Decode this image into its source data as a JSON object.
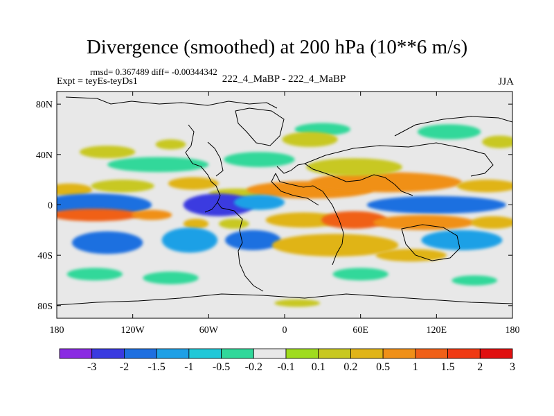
{
  "header": {
    "title": "Divergence (smoothed) at 200 hPa (10**6 m/s)",
    "stats": "rmsd= 0.367489 diff= -0.00344342",
    "expt": "Expt = teyEs-teyDs1",
    "subtitle": "222_4_MaBP - 222_4_MaBP",
    "season": "JJA"
  },
  "chart_data": {
    "type": "heatmap",
    "title": "Divergence (smoothed) at 200 hPa (10**6 m/s)",
    "xlabel": "",
    "ylabel": "",
    "xlim": [
      -180,
      180
    ],
    "ylim": [
      -90,
      90
    ],
    "x_ticks": [
      {
        "value": -180,
        "label": "180"
      },
      {
        "value": -120,
        "label": "120W"
      },
      {
        "value": -60,
        "label": "60W"
      },
      {
        "value": 0,
        "label": "0"
      },
      {
        "value": 60,
        "label": "60E"
      },
      {
        "value": 120,
        "label": "120E"
      },
      {
        "value": 180,
        "label": "180"
      }
    ],
    "y_ticks": [
      {
        "value": 80,
        "label": "80N"
      },
      {
        "value": 40,
        "label": "40N"
      },
      {
        "value": 0,
        "label": "0"
      },
      {
        "value": -40,
        "label": "40S"
      },
      {
        "value": -80,
        "label": "80S"
      }
    ],
    "colorbar": {
      "levels": [
        "-3",
        "-2",
        "-1.5",
        "-1",
        "-0.5",
        "-0.2",
        "-0.1",
        "0.1",
        "0.2",
        "0.5",
        "1",
        "1.5",
        "2",
        "3"
      ],
      "colors": [
        "#8a2be2",
        "#3a3ae0",
        "#1e6fe0",
        "#1ea0e6",
        "#20c8d8",
        "#30d89a",
        "#e8e8e8",
        "#9fdc1e",
        "#c8c820",
        "#e0b418",
        "#f09018",
        "#f06018",
        "#f03a14",
        "#e01010"
      ]
    },
    "blobs": [
      {
        "lon": -170,
        "lat": 12,
        "rx": 18,
        "ry": 5,
        "level": 9
      },
      {
        "lon": -128,
        "lat": 15,
        "rx": 25,
        "ry": 5,
        "level": 8
      },
      {
        "lon": -72,
        "lat": 17,
        "rx": 20,
        "ry": 5,
        "level": 9
      },
      {
        "lon": -38,
        "lat": 9,
        "rx": 22,
        "ry": 4,
        "level": 8
      },
      {
        "lon": 20,
        "lat": 12,
        "rx": 50,
        "ry": 7,
        "level": 10
      },
      {
        "lon": 80,
        "lat": 18,
        "rx": 60,
        "ry": 8,
        "level": 10
      },
      {
        "lon": 160,
        "lat": 15,
        "rx": 24,
        "ry": 5,
        "level": 9
      },
      {
        "lon": 55,
        "lat": 30,
        "rx": 38,
        "ry": 7,
        "level": 8
      },
      {
        "lon": -150,
        "lat": 0,
        "rx": 45,
        "ry": 9,
        "level": 2
      },
      {
        "lon": -52,
        "lat": 0,
        "rx": 28,
        "ry": 9,
        "level": 1
      },
      {
        "lon": -20,
        "lat": 2,
        "rx": 20,
        "ry": 6,
        "level": 3
      },
      {
        "lon": 120,
        "lat": 0,
        "rx": 55,
        "ry": 7,
        "level": 2
      },
      {
        "lon": -150,
        "lat": -8,
        "rx": 35,
        "ry": 5,
        "level": 11
      },
      {
        "lon": -105,
        "lat": -8,
        "rx": 16,
        "ry": 4,
        "level": 10
      },
      {
        "lon": 15,
        "lat": -12,
        "rx": 30,
        "ry": 6,
        "level": 9
      },
      {
        "lon": 55,
        "lat": -12,
        "rx": 26,
        "ry": 7,
        "level": 11
      },
      {
        "lon": 110,
        "lat": -14,
        "rx": 40,
        "ry": 6,
        "level": 10
      },
      {
        "lon": 165,
        "lat": -14,
        "rx": 18,
        "ry": 5,
        "level": 9
      },
      {
        "lon": -70,
        "lat": -15,
        "rx": 10,
        "ry": 4,
        "level": 9
      },
      {
        "lon": -40,
        "lat": -15,
        "rx": 12,
        "ry": 4,
        "level": 8
      },
      {
        "lon": -140,
        "lat": -30,
        "rx": 28,
        "ry": 9,
        "level": 2
      },
      {
        "lon": -75,
        "lat": -28,
        "rx": 22,
        "ry": 10,
        "level": 3
      },
      {
        "lon": -25,
        "lat": -28,
        "rx": 22,
        "ry": 8,
        "level": 2
      },
      {
        "lon": 140,
        "lat": -28,
        "rx": 32,
        "ry": 8,
        "level": 3
      },
      {
        "lon": 40,
        "lat": -32,
        "rx": 50,
        "ry": 9,
        "level": 9
      },
      {
        "lon": 100,
        "lat": -40,
        "rx": 28,
        "ry": 5,
        "level": 9
      },
      {
        "lon": -100,
        "lat": 32,
        "rx": 40,
        "ry": 6,
        "level": 5
      },
      {
        "lon": -20,
        "lat": 36,
        "rx": 28,
        "ry": 6,
        "level": 5
      },
      {
        "lon": 30,
        "lat": 60,
        "rx": 22,
        "ry": 5,
        "level": 5
      },
      {
        "lon": 130,
        "lat": 58,
        "rx": 25,
        "ry": 6,
        "level": 5
      },
      {
        "lon": 140,
        "lat": 42,
        "rx": 25,
        "ry": 5,
        "level": 6
      },
      {
        "lon": -140,
        "lat": 42,
        "rx": 22,
        "ry": 5,
        "level": 8
      },
      {
        "lon": -90,
        "lat": 48,
        "rx": 12,
        "ry": 4,
        "level": 8
      },
      {
        "lon": 20,
        "lat": 52,
        "rx": 22,
        "ry": 6,
        "level": 8
      },
      {
        "lon": 170,
        "lat": 50,
        "rx": 14,
        "ry": 5,
        "level": 8
      },
      {
        "lon": -150,
        "lat": -55,
        "rx": 22,
        "ry": 5,
        "level": 5
      },
      {
        "lon": -90,
        "lat": -58,
        "rx": 22,
        "ry": 5,
        "level": 5
      },
      {
        "lon": 60,
        "lat": -55,
        "rx": 22,
        "ry": 5,
        "level": 5
      },
      {
        "lon": 150,
        "lat": -60,
        "rx": 18,
        "ry": 4,
        "level": 5
      },
      {
        "lon": 10,
        "lat": -78,
        "rx": 18,
        "ry": 3,
        "level": 8
      }
    ]
  }
}
